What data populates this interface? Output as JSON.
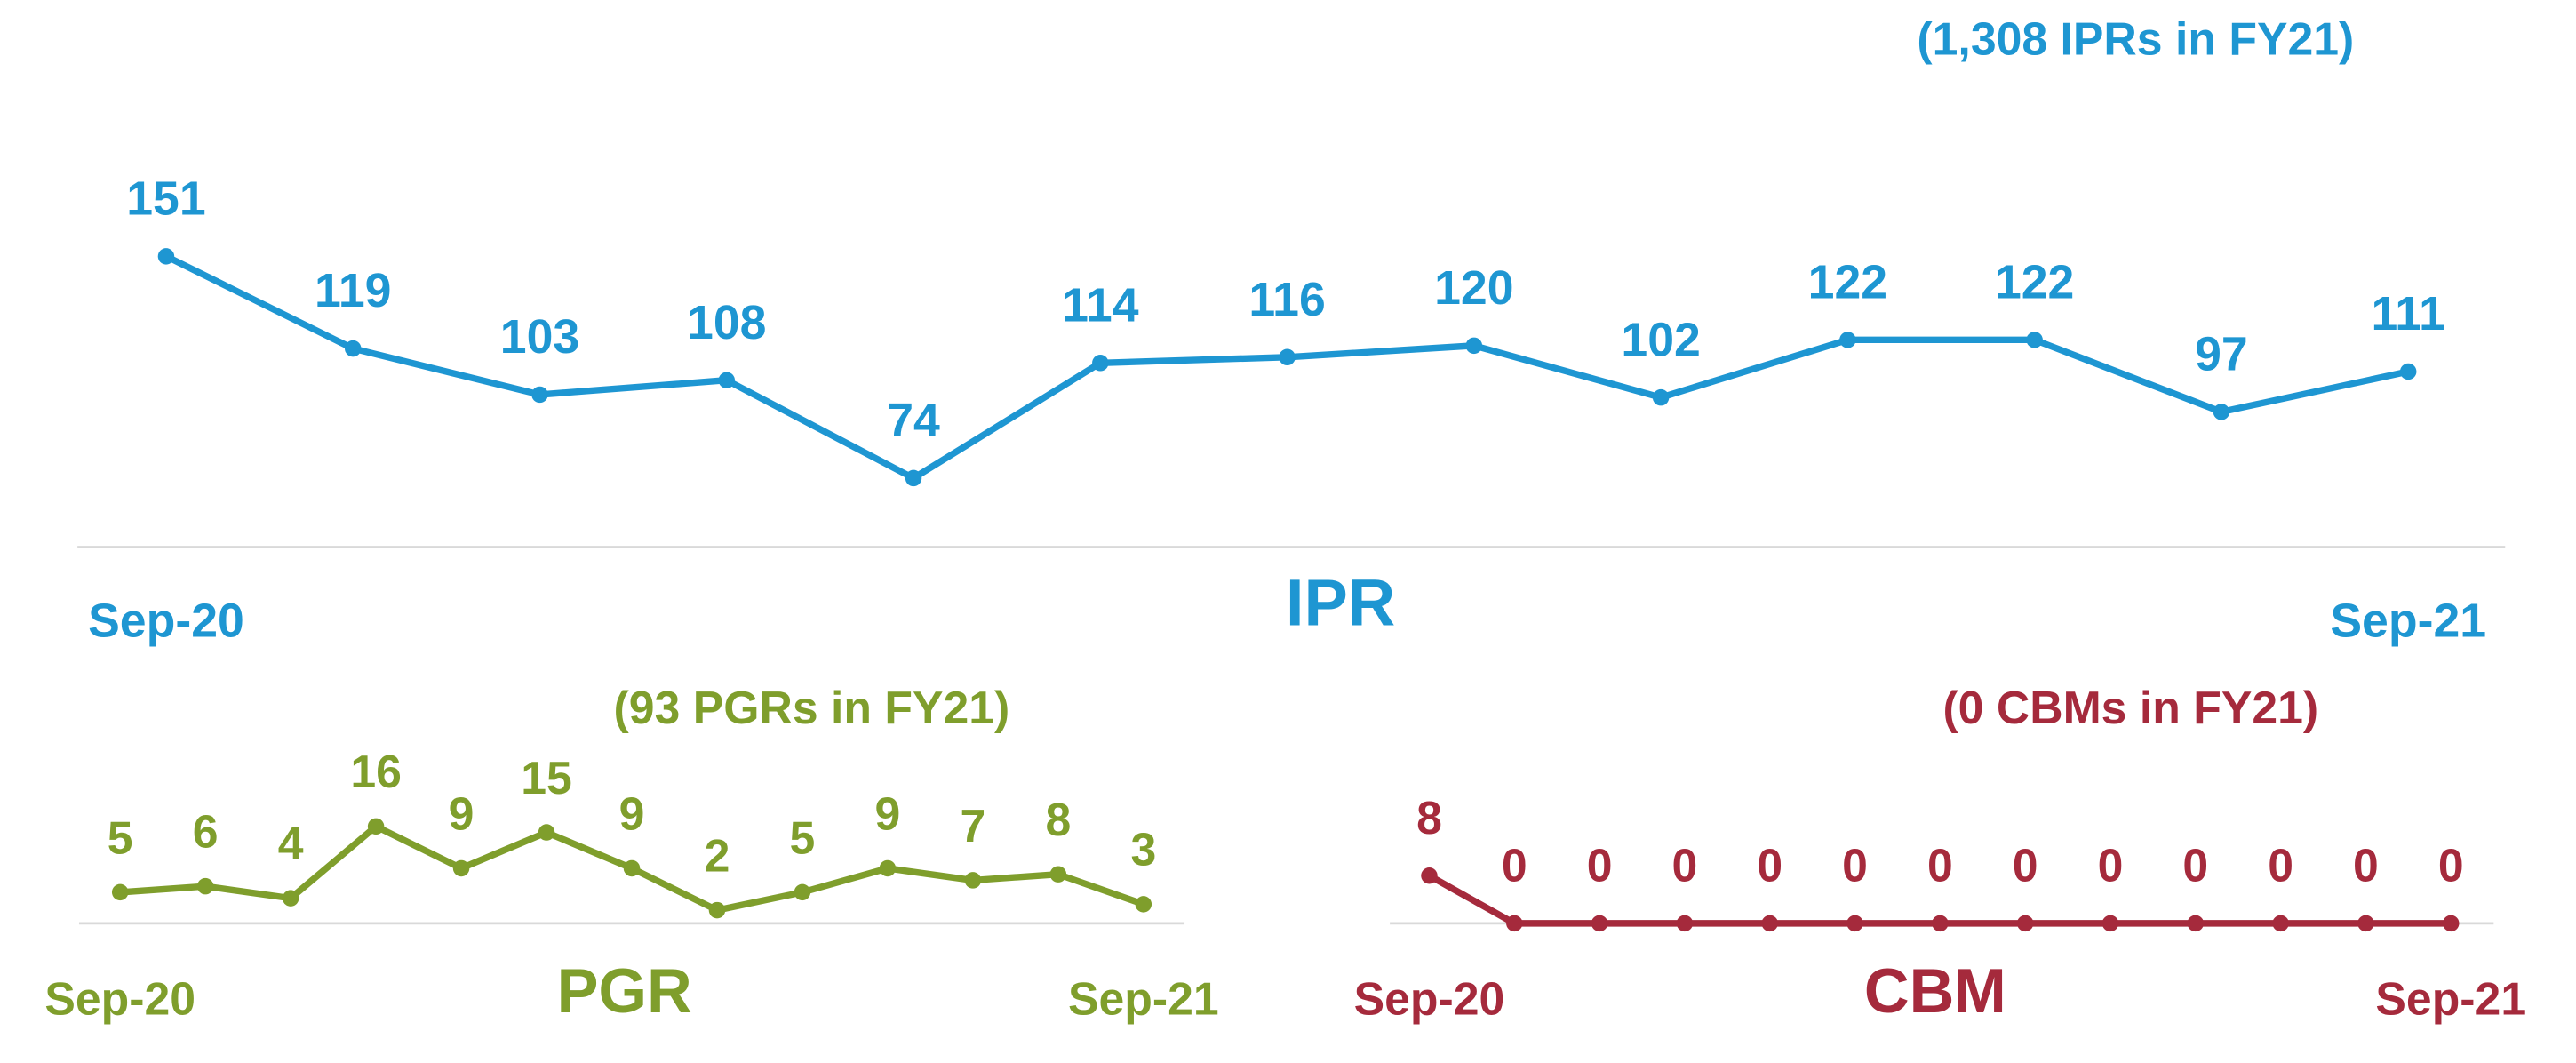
{
  "chart_data": [
    {
      "type": "line",
      "title": "IPR",
      "subtitle": "(1,308 IPRs in FY21)",
      "color": "#1e96d2",
      "categories": [
        "Sep-20",
        null,
        null,
        null,
        null,
        null,
        null,
        null,
        null,
        null,
        null,
        null,
        "Sep-21"
      ],
      "values": [
        151,
        119,
        103,
        108,
        74,
        114,
        116,
        120,
        102,
        122,
        122,
        97,
        111
      ]
    },
    {
      "type": "line",
      "title": "PGR",
      "subtitle": "(93 PGRs in FY21)",
      "color": "#7f9e2c",
      "categories": [
        "Sep-20",
        null,
        null,
        null,
        null,
        null,
        null,
        null,
        null,
        null,
        null,
        null,
        "Sep-21"
      ],
      "values": [
        5,
        6,
        4,
        16,
        9,
        15,
        9,
        2,
        5,
        9,
        7,
        8,
        3
      ]
    },
    {
      "type": "line",
      "title": "CBM",
      "subtitle": "(0 CBMs in FY21)",
      "color": "#a52a3c",
      "categories": [
        "Sep-20",
        null,
        null,
        null,
        null,
        null,
        null,
        null,
        null,
        null,
        null,
        null,
        "Sep-21"
      ],
      "values": [
        8,
        0,
        0,
        0,
        0,
        0,
        0,
        0,
        0,
        0,
        0,
        0,
        0
      ]
    }
  ]
}
